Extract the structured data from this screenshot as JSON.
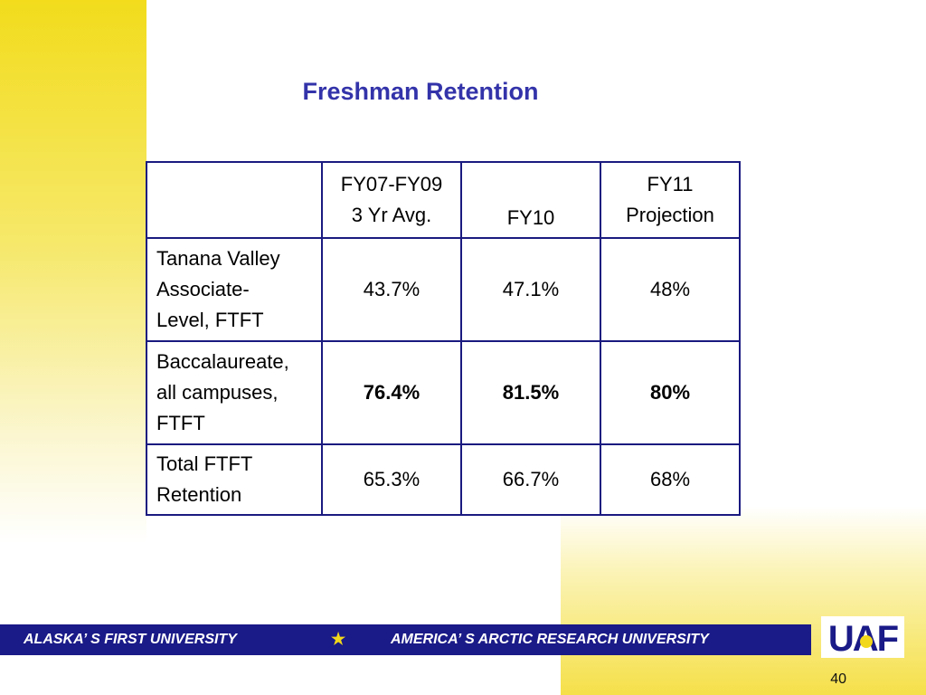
{
  "slide": {
    "title": "Freshman Retention",
    "page_number": "40"
  },
  "table": {
    "headers": {
      "col1_line1": "FY07-FY09",
      "col1_line2": "3 Yr Avg.",
      "col2": "FY10",
      "col3_line1": "FY11",
      "col3_line2": "Projection"
    },
    "rows": [
      {
        "label_lines": [
          "Tanana Valley",
          "Associate-",
          "Level, FTFT"
        ],
        "values": [
          "43.7%",
          "47.1%",
          "48%"
        ],
        "bold": false
      },
      {
        "label_lines": [
          "Baccalaureate,",
          "all campuses,",
          "FTFT"
        ],
        "values": [
          "76.4%",
          "81.5%",
          "80%"
        ],
        "bold": true
      },
      {
        "label_lines": [
          "Total FTFT",
          "Retention"
        ],
        "values": [
          "65.3%",
          "66.7%",
          "68%"
        ],
        "bold": false
      }
    ]
  },
  "footer": {
    "left_text": "ALASKA’ S FIRST UNIVERSITY",
    "separator": "★",
    "right_text": "AMERICA’ S ARCTIC RESEARCH UNIVERSITY",
    "logo_text": "UAF"
  },
  "colors": {
    "title": "#3333aa",
    "banner": "#1a1a88",
    "accent_yellow": "#f2dc1c",
    "table_border": "#1a1a80"
  }
}
